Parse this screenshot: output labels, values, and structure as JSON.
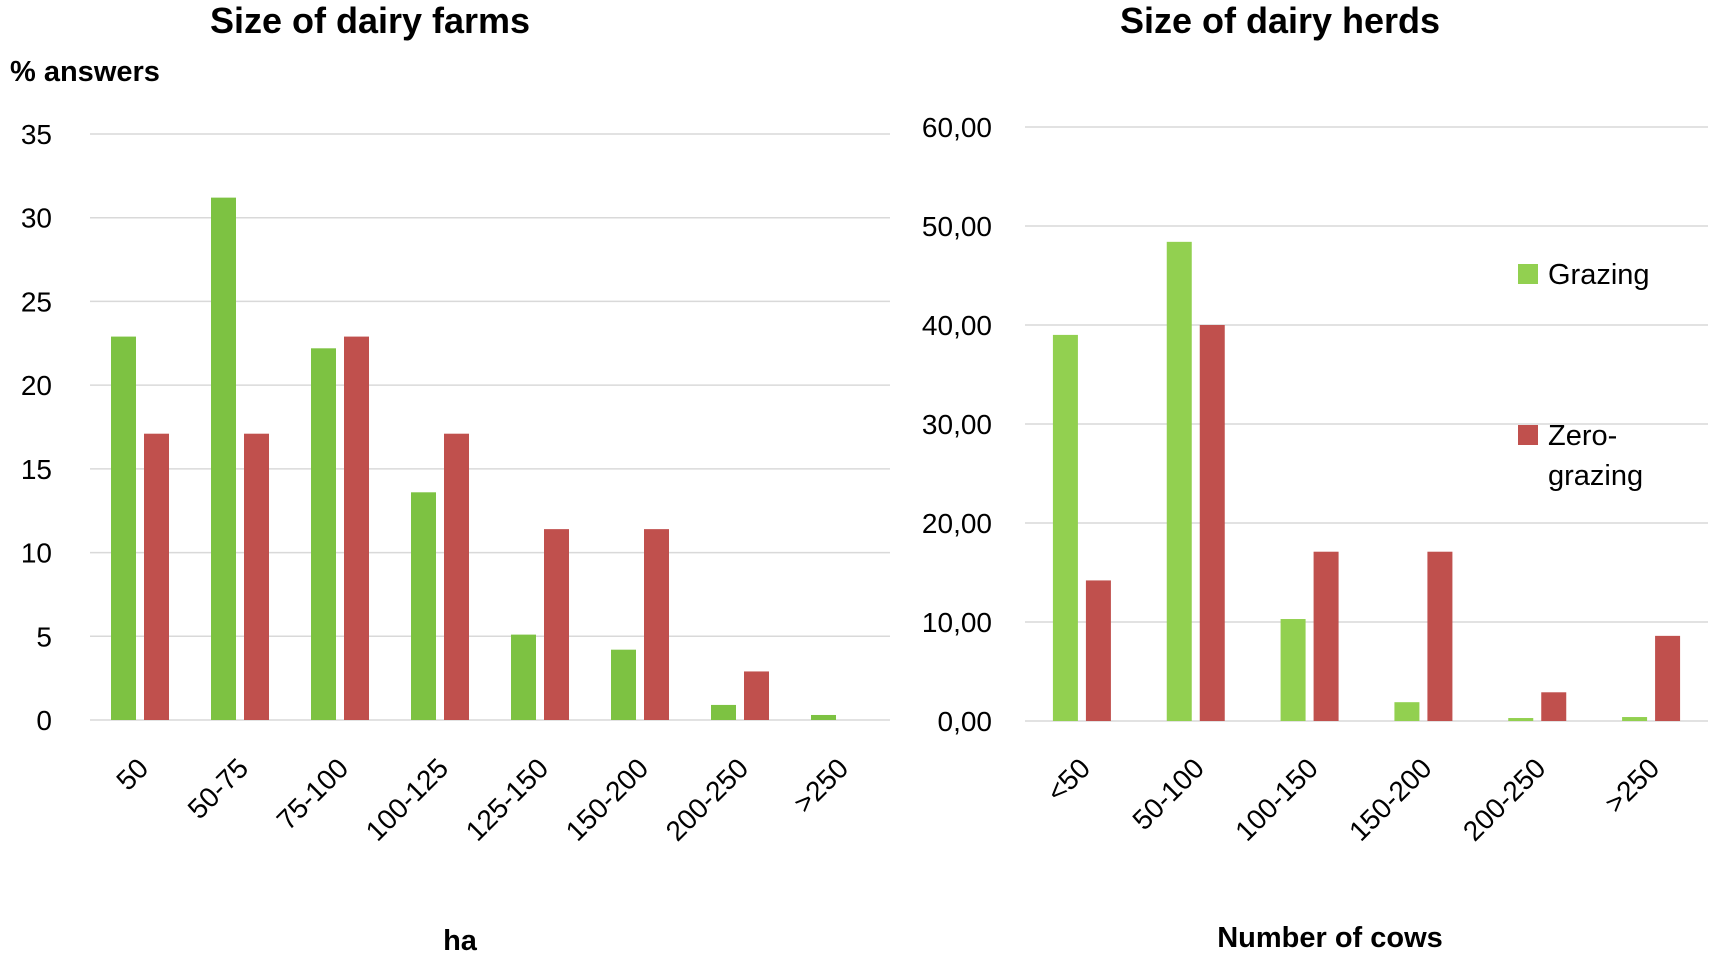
{
  "chart_data": [
    {
      "type": "bar",
      "title": "Size of dairy farms",
      "ylabel": "% answers",
      "xlabel": "ha",
      "categories": [
        "50",
        "50-75",
        "75-100",
        "100-125",
        "125-150",
        "150-200",
        "200-250",
        ">250"
      ],
      "ylim": [
        0,
        35
      ],
      "yticks": [
        "0",
        "5",
        "10",
        "15",
        "20",
        "25",
        "30",
        "35"
      ],
      "grid": true,
      "series": [
        {
          "name": "Grazing",
          "color": "#7dc242",
          "values": [
            22.9,
            31.2,
            22.2,
            13.6,
            5.1,
            4.2,
            0.9,
            0.3
          ]
        },
        {
          "name": "Zero-grazing",
          "color": "#c0504d",
          "values": [
            17.1,
            17.1,
            22.9,
            17.1,
            11.4,
            11.4,
            2.9,
            0
          ]
        }
      ]
    },
    {
      "type": "bar",
      "title": "Size of dairy herds",
      "ylabel": "",
      "xlabel": "Number of cows",
      "categories": [
        "<50",
        "50-100",
        "100-150",
        "150-200",
        "200-250",
        ">250"
      ],
      "ylim": [
        0,
        60
      ],
      "yticks": [
        "0,00",
        "10,00",
        "20,00",
        "30,00",
        "40,00",
        "50,00",
        "60,00"
      ],
      "grid": true,
      "legend_position": "right",
      "series": [
        {
          "name": "Grazing",
          "color": "#92d050",
          "values": [
            39.0,
            48.4,
            10.3,
            1.9,
            0.3,
            0.4
          ]
        },
        {
          "name": "Zero-grazing",
          "color": "#c0504d",
          "values": [
            14.2,
            40.0,
            17.1,
            17.1,
            2.9,
            8.6
          ]
        }
      ]
    }
  ],
  "legend": {
    "grazing_label": "Grazing",
    "zero_grazing_label_line1": "Zero-",
    "zero_grazing_label_line2": "grazing",
    "grazing_color": "#92d050",
    "zero_grazing_color": "#c0504d"
  },
  "gridline_color": "#d9d9d9"
}
